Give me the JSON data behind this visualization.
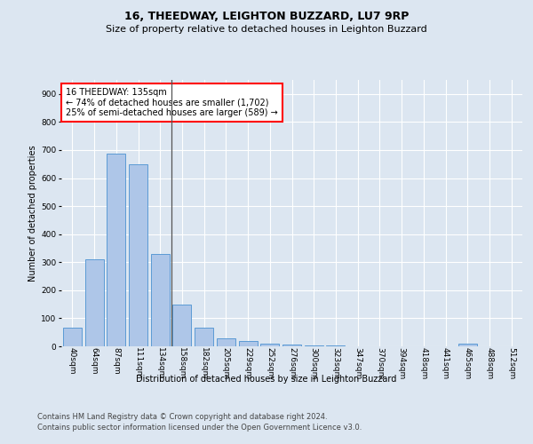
{
  "title1": "16, THEEDWAY, LEIGHTON BUZZARD, LU7 9RP",
  "title2": "Size of property relative to detached houses in Leighton Buzzard",
  "xlabel": "Distribution of detached houses by size in Leighton Buzzard",
  "ylabel": "Number of detached properties",
  "footer1": "Contains HM Land Registry data © Crown copyright and database right 2024.",
  "footer2": "Contains public sector information licensed under the Open Government Licence v3.0.",
  "annotation_line1": "16 THEEDWAY: 135sqm",
  "annotation_line2": "← 74% of detached houses are smaller (1,702)",
  "annotation_line3": "25% of semi-detached houses are larger (589) →",
  "bar_labels": [
    "40sqm",
    "64sqm",
    "87sqm",
    "111sqm",
    "134sqm",
    "158sqm",
    "182sqm",
    "205sqm",
    "229sqm",
    "252sqm",
    "276sqm",
    "300sqm",
    "323sqm",
    "347sqm",
    "370sqm",
    "394sqm",
    "418sqm",
    "441sqm",
    "465sqm",
    "488sqm",
    "512sqm"
  ],
  "bar_heights": [
    65,
    310,
    688,
    650,
    328,
    150,
    65,
    28,
    18,
    10,
    6,
    3,
    2,
    1,
    1,
    0,
    0,
    0,
    8,
    0,
    0
  ],
  "bar_color": "#aec6e8",
  "bar_edge_color": "#5b9bd5",
  "bg_color": "#dce6f1",
  "ylim": [
    0,
    950
  ],
  "yticks": [
    0,
    100,
    200,
    300,
    400,
    500,
    600,
    700,
    800,
    900
  ],
  "grid_color": "#ffffff",
  "title1_fontsize": 9,
  "title2_fontsize": 8,
  "annotation_fontsize": 7,
  "axis_label_fontsize": 7,
  "tick_fontsize": 6.5,
  "footer_fontsize": 6
}
